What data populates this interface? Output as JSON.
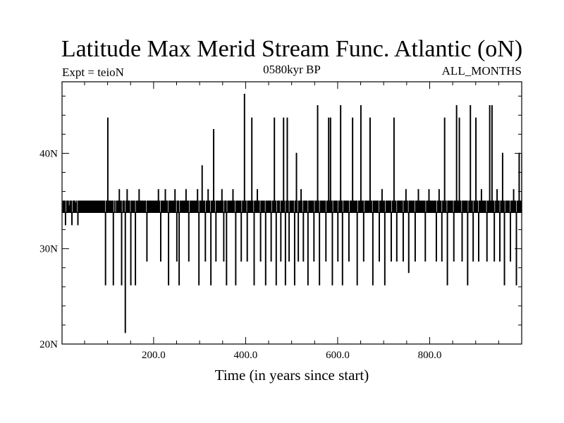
{
  "chart_data": {
    "type": "line",
    "title": "Latitude Max Merid Stream Func. Atlantic (oN)",
    "subtitle_left": "Expt = teioN",
    "subtitle_center": "0580kyr BP",
    "subtitle_right": "ALL_MONTHS",
    "xlabel": "Time (in years since start)",
    "ylabel": "",
    "xlim": [
      1,
      1000
    ],
    "ylim": [
      20,
      47.5
    ],
    "x_major_ticks": [
      200,
      400,
      600,
      800
    ],
    "x_tick_labels": [
      "200.0",
      "400.0",
      "600.0",
      "800.0"
    ],
    "x_minor_step": 50,
    "y_major_ticks": [
      20,
      30,
      40
    ],
    "y_tick_labels": [
      "20N",
      "30N",
      "40N"
    ],
    "y_minor_step": 2,
    "grid": false,
    "series": [
      {
        "name": "",
        "color": "#000000",
        "baseline": 33.8,
        "band": [
          33.8,
          35
        ],
        "spikes": [
          [
            5,
            35
          ],
          [
            8,
            32.5
          ],
          [
            15,
            34.5
          ],
          [
            22,
            32.5
          ],
          [
            30,
            34.8
          ],
          [
            35,
            32.5
          ],
          [
            45,
            35
          ],
          [
            60,
            35
          ],
          [
            75,
            35
          ],
          [
            95,
            26.2
          ],
          [
            100,
            43.7
          ],
          [
            104,
            35
          ],
          [
            112,
            26.2
          ],
          [
            118,
            33.8
          ],
          [
            125,
            36.2
          ],
          [
            130,
            26.2
          ],
          [
            138,
            21.2
          ],
          [
            142,
            36.2
          ],
          [
            150,
            26.2
          ],
          [
            156,
            35
          ],
          [
            160,
            26.2
          ],
          [
            168,
            36.2
          ],
          [
            180,
            35
          ],
          [
            185,
            28.7
          ],
          [
            195,
            35
          ],
          [
            210,
            36.2
          ],
          [
            215,
            28.7
          ],
          [
            225,
            36.2
          ],
          [
            232,
            26.2
          ],
          [
            240,
            35
          ],
          [
            246,
            36.2
          ],
          [
            250,
            28.7
          ],
          [
            255,
            26.2
          ],
          [
            262,
            35
          ],
          [
            270,
            36.2
          ],
          [
            276,
            28.7
          ],
          [
            285,
            35
          ],
          [
            295,
            36.2
          ],
          [
            298,
            26.2
          ],
          [
            305,
            38.7
          ],
          [
            312,
            28.7
          ],
          [
            318,
            36.2
          ],
          [
            324,
            26.2
          ],
          [
            330,
            42.5
          ],
          [
            335,
            28.7
          ],
          [
            340,
            35
          ],
          [
            348,
            36.2
          ],
          [
            352,
            28.7
          ],
          [
            358,
            26.2
          ],
          [
            365,
            35
          ],
          [
            372,
            36.2
          ],
          [
            378,
            26.2
          ],
          [
            384,
            35
          ],
          [
            390,
            28.7
          ],
          [
            397,
            46.2
          ],
          [
            403,
            28.7
          ],
          [
            410,
            35
          ],
          [
            413,
            43.7
          ],
          [
            418,
            26.2
          ],
          [
            425,
            36.2
          ],
          [
            432,
            28.7
          ],
          [
            438,
            35
          ],
          [
            443,
            26.2
          ],
          [
            450,
            35
          ],
          [
            455,
            28.7
          ],
          [
            462,
            43.7
          ],
          [
            466,
            26.2
          ],
          [
            470,
            35
          ],
          [
            476,
            28.7
          ],
          [
            482,
            43.7
          ],
          [
            486,
            26.2
          ],
          [
            490,
            43.7
          ],
          [
            494,
            28.7
          ],
          [
            500,
            35
          ],
          [
            506,
            26.2
          ],
          [
            510,
            40
          ],
          [
            514,
            28.7
          ],
          [
            520,
            36.2
          ],
          [
            525,
            28.7
          ],
          [
            530,
            35
          ],
          [
            535,
            26.2
          ],
          [
            540,
            35
          ],
          [
            548,
            28.7
          ],
          [
            556,
            45
          ],
          [
            560,
            26.2
          ],
          [
            566,
            35
          ],
          [
            574,
            28.7
          ],
          [
            580,
            43.7
          ],
          [
            584,
            43.7
          ],
          [
            588,
            26.2
          ],
          [
            594,
            35
          ],
          [
            600,
            28.7
          ],
          [
            606,
            45
          ],
          [
            610,
            26.2
          ],
          [
            616,
            35
          ],
          [
            624,
            28.7
          ],
          [
            632,
            43.7
          ],
          [
            638,
            35
          ],
          [
            642,
            26.2
          ],
          [
            650,
            45
          ],
          [
            656,
            28.7
          ],
          [
            664,
            35
          ],
          [
            670,
            43.7
          ],
          [
            676,
            26.2
          ],
          [
            684,
            35
          ],
          [
            690,
            28.7
          ],
          [
            696,
            36.2
          ],
          [
            702,
            26.2
          ],
          [
            710,
            35
          ],
          [
            716,
            28.7
          ],
          [
            722,
            43.7
          ],
          [
            728,
            28.7
          ],
          [
            734,
            35
          ],
          [
            742,
            28.7
          ],
          [
            748,
            36.2
          ],
          [
            754,
            27.5
          ],
          [
            760,
            35
          ],
          [
            768,
            28.7
          ],
          [
            775,
            36.2
          ],
          [
            782,
            35
          ],
          [
            790,
            28.7
          ],
          [
            798,
            36.2
          ],
          [
            806,
            35
          ],
          [
            814,
            28.7
          ],
          [
            820,
            36.2
          ],
          [
            826,
            28.7
          ],
          [
            832,
            43.7
          ],
          [
            838,
            26.2
          ],
          [
            846,
            35
          ],
          [
            852,
            28.7
          ],
          [
            858,
            45
          ],
          [
            864,
            43.7
          ],
          [
            870,
            28.7
          ],
          [
            876,
            35
          ],
          [
            882,
            26.2
          ],
          [
            888,
            45
          ],
          [
            894,
            28.7
          ],
          [
            900,
            43.7
          ],
          [
            906,
            28.7
          ],
          [
            912,
            36.2
          ],
          [
            918,
            35
          ],
          [
            924,
            28.7
          ],
          [
            930,
            45
          ],
          [
            935,
            45
          ],
          [
            940,
            28.7
          ],
          [
            946,
            36.2
          ],
          [
            952,
            28.7
          ],
          [
            958,
            40
          ],
          [
            962,
            26.2
          ],
          [
            968,
            35
          ],
          [
            975,
            28.7
          ],
          [
            982,
            36.2
          ],
          [
            988,
            26.2
          ],
          [
            994,
            40
          ],
          [
            1000,
            40
          ]
        ]
      }
    ]
  }
}
